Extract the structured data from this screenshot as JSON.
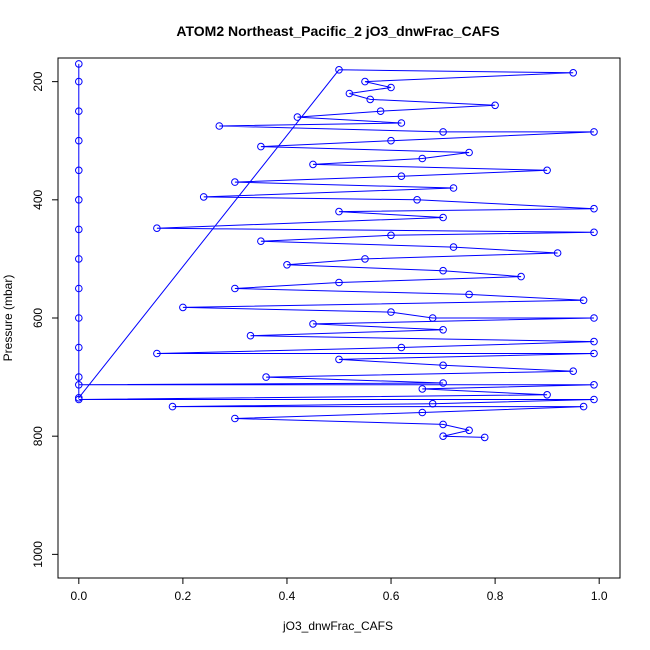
{
  "chart_data": {
    "type": "scatter",
    "title": "ATOM2 Northeast_Pacific_2 jO3_dnwFrac_CAFS",
    "xlabel": "jO3_dnwFrac_CAFS",
    "ylabel": "Pressure (mbar)",
    "xlim": [
      -0.04,
      1.04
    ],
    "ylim": [
      1040,
      160
    ],
    "y_inverted": true,
    "x_ticks": [
      0.0,
      0.2,
      0.4,
      0.6,
      0.8,
      1.0
    ],
    "x_tick_labels": [
      "0.0",
      "0.2",
      "0.4",
      "0.6",
      "0.8",
      "1.0"
    ],
    "y_ticks": [
      200,
      400,
      600,
      800,
      1000
    ],
    "y_tick_labels": [
      "200",
      "400",
      "600",
      "800",
      "1000"
    ],
    "grid": false,
    "marker": "open-circle",
    "connect_points": true,
    "color": "#0000ff",
    "series": [
      {
        "points": [
          [
            0.0,
            170
          ],
          [
            0.0,
            200
          ],
          [
            0.0,
            250
          ],
          [
            0.0,
            300
          ],
          [
            0.0,
            350
          ],
          [
            0.0,
            400
          ],
          [
            0.0,
            450
          ],
          [
            0.0,
            500
          ],
          [
            0.0,
            550
          ],
          [
            0.0,
            600
          ],
          [
            0.0,
            650
          ],
          [
            0.0,
            700
          ],
          [
            0.0,
            735
          ],
          [
            0.5,
            180
          ],
          [
            0.95,
            185
          ],
          [
            0.55,
            200
          ],
          [
            0.6,
            210
          ],
          [
            0.52,
            220
          ],
          [
            0.56,
            230
          ],
          [
            0.8,
            240
          ],
          [
            0.58,
            250
          ],
          [
            0.42,
            260
          ],
          [
            0.62,
            270
          ],
          [
            0.27,
            275
          ],
          [
            0.7,
            285
          ],
          [
            0.99,
            285
          ],
          [
            0.6,
            300
          ],
          [
            0.35,
            310
          ],
          [
            0.75,
            320
          ],
          [
            0.66,
            330
          ],
          [
            0.45,
            340
          ],
          [
            0.9,
            350
          ],
          [
            0.62,
            360
          ],
          [
            0.3,
            370
          ],
          [
            0.72,
            380
          ],
          [
            0.24,
            395
          ],
          [
            0.65,
            400
          ],
          [
            0.99,
            415
          ],
          [
            0.5,
            420
          ],
          [
            0.7,
            430
          ],
          [
            0.15,
            448
          ],
          [
            0.99,
            455
          ],
          [
            0.6,
            460
          ],
          [
            0.35,
            470
          ],
          [
            0.72,
            480
          ],
          [
            0.92,
            490
          ],
          [
            0.55,
            500
          ],
          [
            0.4,
            510
          ],
          [
            0.7,
            520
          ],
          [
            0.85,
            530
          ],
          [
            0.5,
            540
          ],
          [
            0.3,
            550
          ],
          [
            0.75,
            560
          ],
          [
            0.97,
            570
          ],
          [
            0.2,
            582
          ],
          [
            0.6,
            590
          ],
          [
            0.68,
            600
          ],
          [
            0.99,
            600
          ],
          [
            0.45,
            610
          ],
          [
            0.7,
            620
          ],
          [
            0.33,
            630
          ],
          [
            0.99,
            640
          ],
          [
            0.62,
            650
          ],
          [
            0.15,
            660
          ],
          [
            0.99,
            660
          ],
          [
            0.5,
            670
          ],
          [
            0.7,
            680
          ],
          [
            0.95,
            690
          ],
          [
            0.36,
            700
          ],
          [
            0.7,
            710
          ],
          [
            0.0,
            713
          ],
          [
            0.99,
            713
          ],
          [
            0.66,
            720
          ],
          [
            0.9,
            730
          ],
          [
            0.0,
            738
          ],
          [
            0.99,
            738
          ],
          [
            0.68,
            745
          ],
          [
            0.18,
            750
          ],
          [
            0.97,
            750
          ],
          [
            0.66,
            760
          ],
          [
            0.3,
            770
          ],
          [
            0.7,
            780
          ],
          [
            0.75,
            790
          ],
          [
            0.7,
            800
          ],
          [
            0.78,
            802
          ]
        ]
      }
    ]
  }
}
